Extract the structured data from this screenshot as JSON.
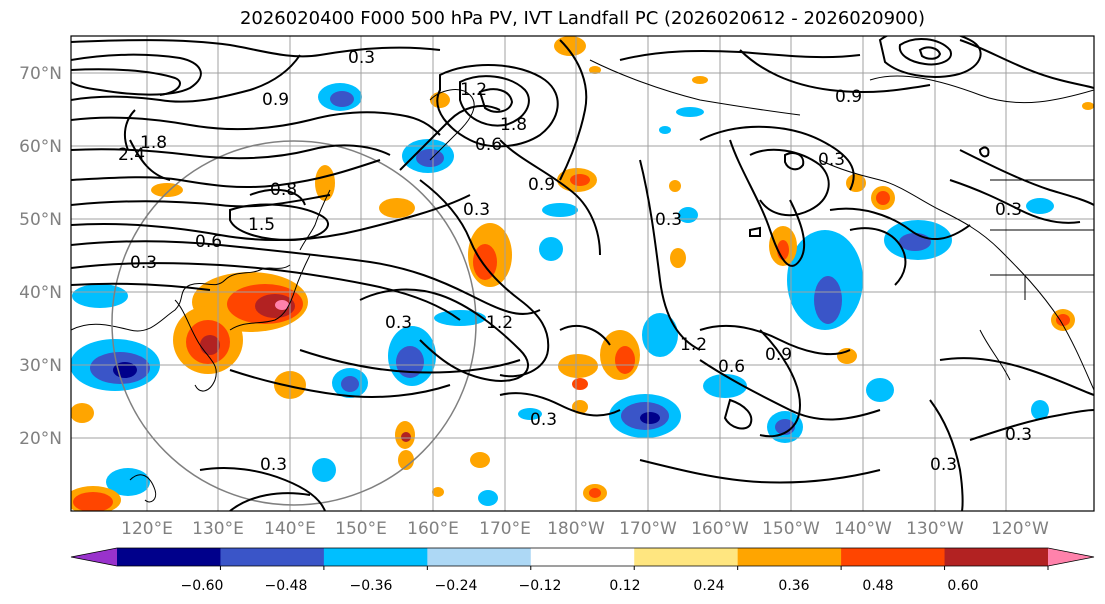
{
  "title": "2026020400 F000 500 hPa PV, IVT Landfall PC (2026020612 - 2026020900)",
  "lat_labels": [
    "70°N",
    "60°N",
    "50°N",
    "40°N",
    "30°N",
    "20°N"
  ],
  "lon_labels": [
    "120°E",
    "130°E",
    "140°E",
    "150°E",
    "160°E",
    "170°E",
    "180°W",
    "170°W",
    "160°W",
    "150°W",
    "140°W",
    "130°W",
    "120°W"
  ],
  "contour_labels": [
    "0.3",
    "0.9",
    "0.8",
    "1.5",
    "1.8",
    "0.6",
    "0.9",
    "0.3",
    "1.2",
    "0.3",
    "2.4",
    "1.8",
    "1.2",
    "0.6",
    "0.3",
    "0.9",
    "0.3",
    "1.2",
    "0.3",
    "0.6",
    "0.9",
    "0.3",
    "0.3",
    "0.3",
    "0.3",
    "0.3"
  ],
  "colorbar": {
    "ticks": [
      "−0.60",
      "−0.48",
      "−0.36",
      "−0.24",
      "−0.12",
      "0.12",
      "0.24",
      "0.36",
      "0.48",
      "0.60"
    ],
    "colors": [
      "#9932cc",
      "#00008b",
      "#3a55c8",
      "#00bfff",
      "#add8f5",
      "#ffffff",
      "#ffe680",
      "#ffa500",
      "#ff4500",
      "#b22222",
      "#ff82ab"
    ]
  }
}
